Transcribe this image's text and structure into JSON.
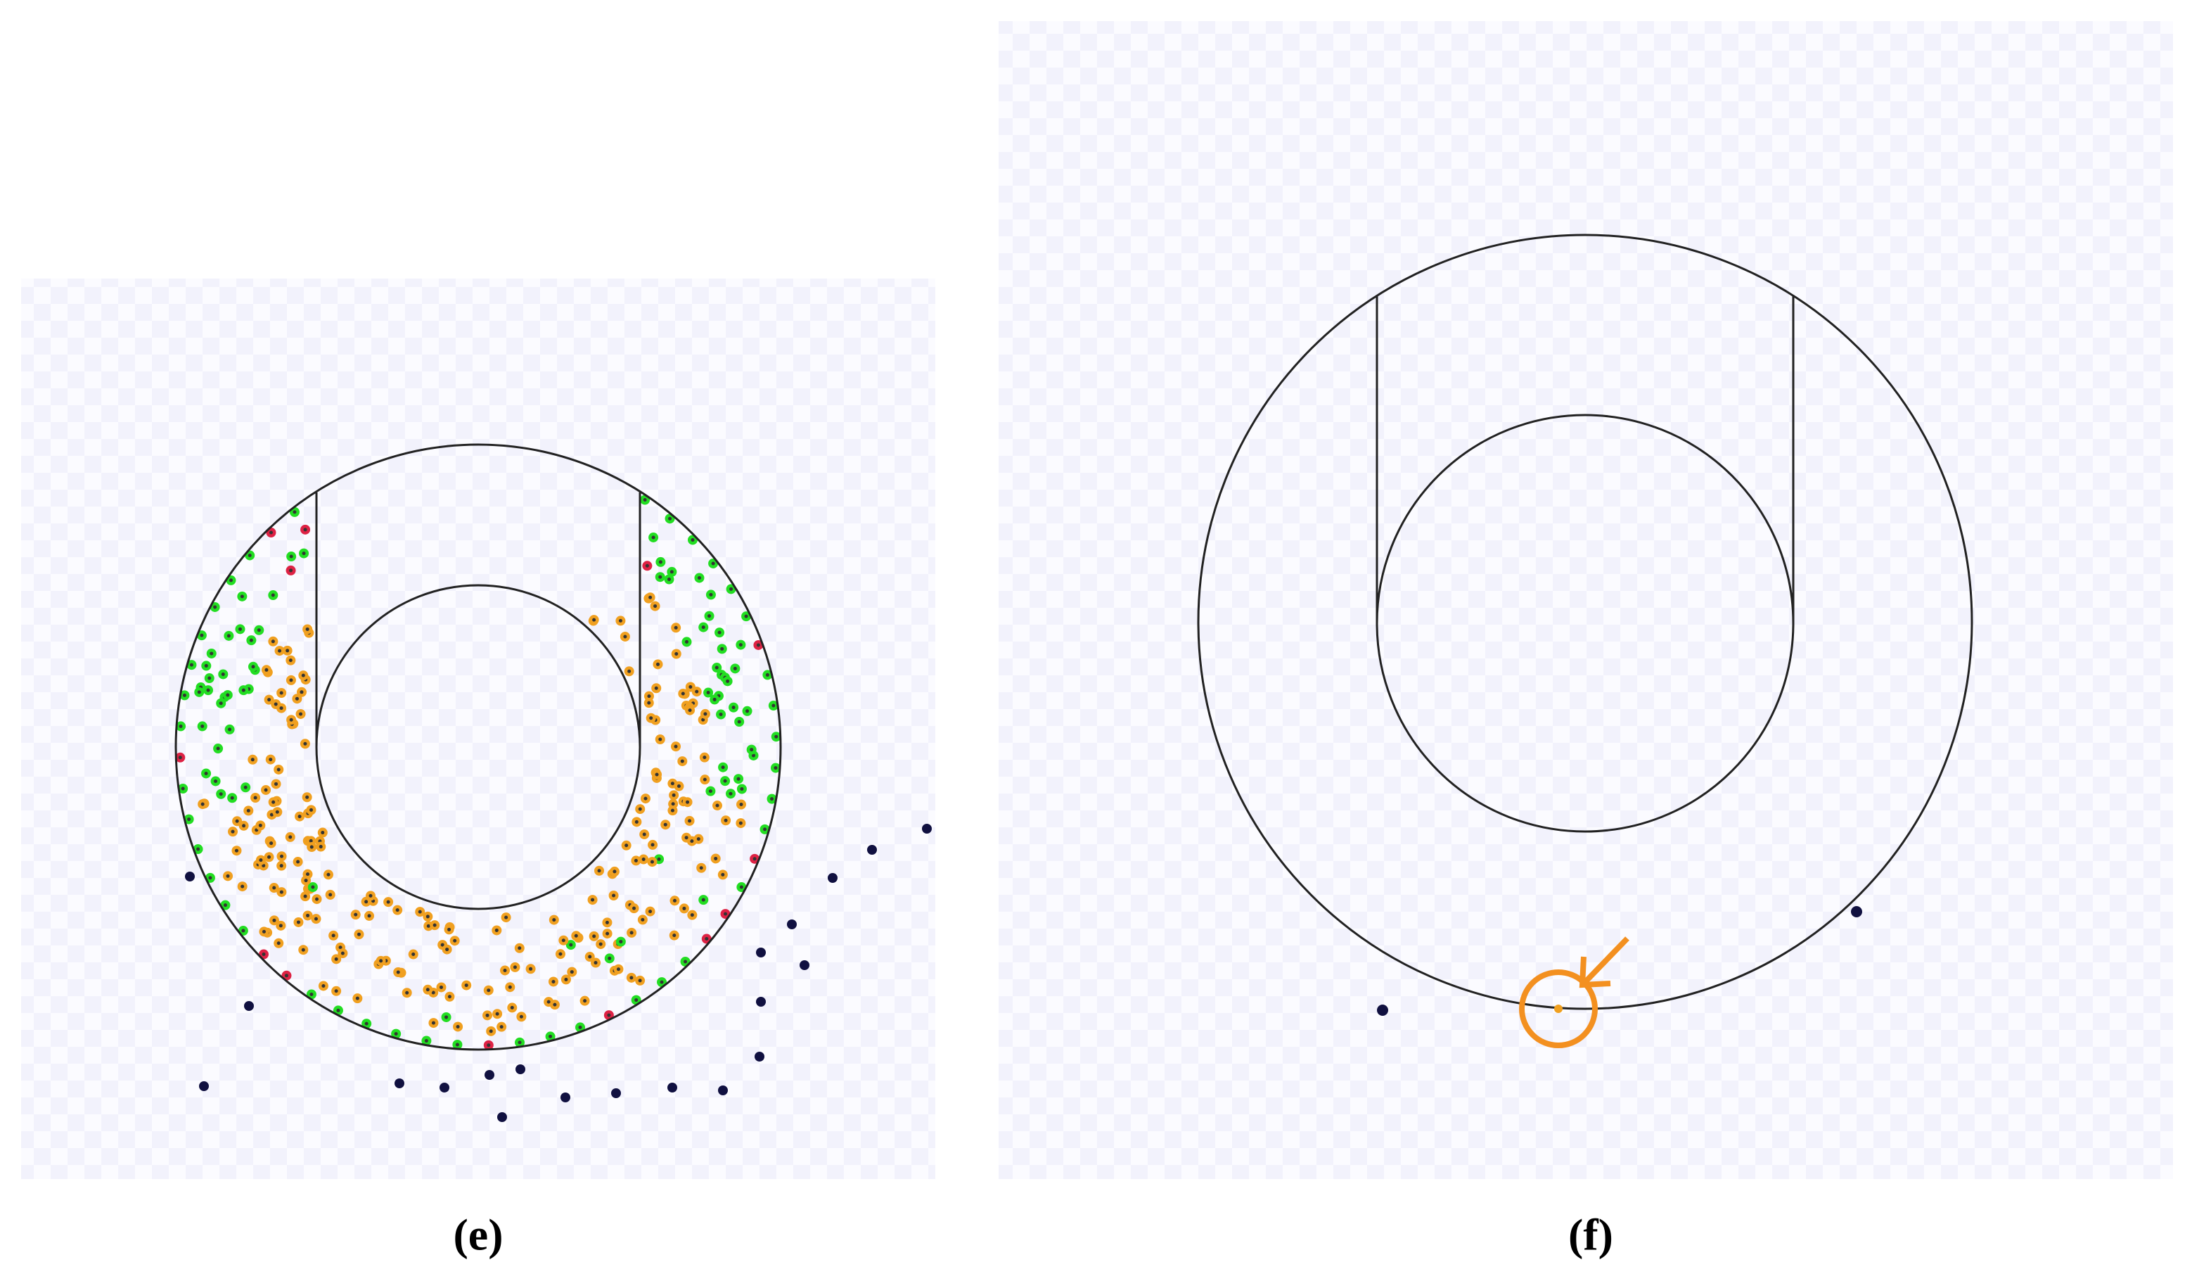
{
  "panels": [
    {
      "caption": "(e)"
    },
    {
      "caption": "(f)"
    }
  ]
}
